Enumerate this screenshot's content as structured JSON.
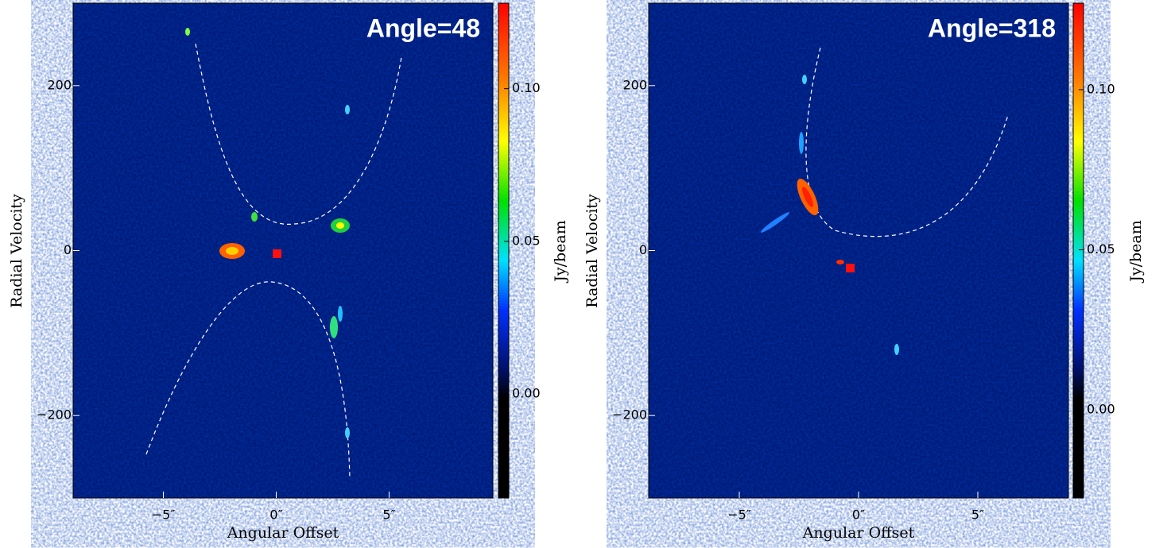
{
  "chart_data": [
    {
      "type": "heatmap",
      "title": "Angle=48",
      "xlabel": "Angular Offset",
      "ylabel": "Radial Velocity",
      "xlim": [
        -9,
        9.6
      ],
      "ylim": [
        -300,
        300
      ],
      "xticks": [
        {
          "value": -5,
          "label": "−5″"
        },
        {
          "value": 0,
          "label": "0″"
        },
        {
          "value": 5,
          "label": "5″"
        }
      ],
      "yticks": [
        {
          "value": -200,
          "label": "−200"
        },
        0,
        200
      ],
      "colorbar_label": "Jy/beam",
      "clim": [
        -0.034,
        0.128
      ],
      "cticks": [
        {
          "value": 0,
          "label": "0.00"
        },
        {
          "value": 0.05,
          "label": "0.05"
        },
        {
          "value": 0.1,
          "label": "0.10"
        }
      ]
    },
    {
      "type": "heatmap",
      "title": "Angle=318",
      "xlabel": "Angular Offset",
      "ylabel": "Radial Velocity",
      "xlim": [
        -8.8,
        8.8
      ],
      "ylim": [
        -300,
        300
      ],
      "xticks": [
        {
          "value": -5,
          "label": "−5″"
        },
        {
          "value": 0,
          "label": "0″"
        },
        {
          "value": 5,
          "label": "5″"
        }
      ],
      "yticks": [
        {
          "value": -200,
          "label": "−200"
        },
        0,
        200
      ],
      "colorbar_label": "Jy/beam",
      "clim": [
        -0.0275,
        0.127
      ],
      "cticks": [
        {
          "value": 0,
          "label": "0.00"
        },
        {
          "value": 0.05,
          "label": "0.05"
        },
        {
          "value": 0.1,
          "label": "0.10"
        }
      ]
    }
  ]
}
